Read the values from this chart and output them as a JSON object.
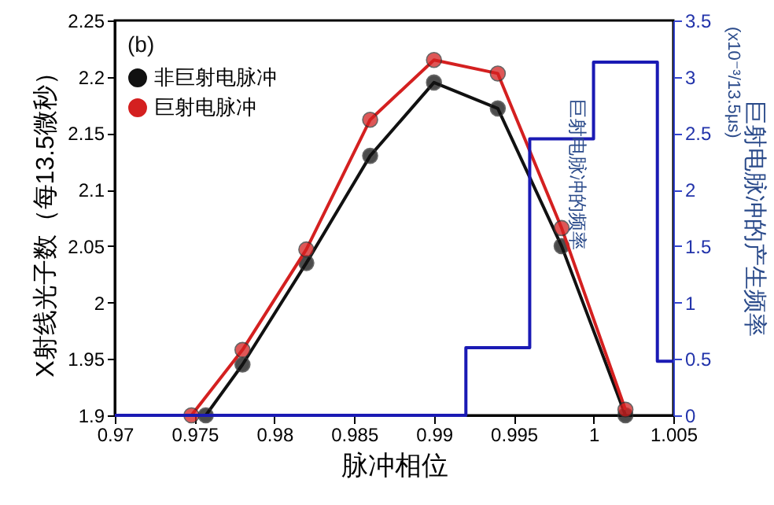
{
  "chart_data": {
    "type": "line",
    "xlabel": "脉冲相位",
    "ylabel": "X射线光子数（每13.5微秒）",
    "y2label": "巨射电脉冲的产生频率",
    "annotations": [
      "(b)",
      "巨射电脉冲的频率",
      "(x10⁻³/13.5μs)"
    ],
    "xlim": [
      0.97,
      1.005
    ],
    "xticks": [
      0.97,
      0.975,
      0.98,
      0.985,
      0.99,
      0.995,
      1,
      1.005
    ],
    "ylim": [
      1.9,
      2.25
    ],
    "yticks": [
      1.9,
      1.95,
      2,
      2.05,
      2.1,
      2.15,
      2.2,
      2.25
    ],
    "y2lim": [
      0,
      3.5
    ],
    "y2ticks": [
      0,
      0.5,
      1,
      1.5,
      2,
      2.5,
      3,
      3.5
    ],
    "grid": false,
    "legend": "top left",
    "marker": "circle",
    "series": [
      {
        "name": "非巨射电脉冲",
        "color": "#111111",
        "x": [
          0.9757,
          0.978,
          0.982,
          0.986,
          0.99,
          0.994,
          0.998,
          1.002
        ],
        "values": [
          1.9,
          1.945,
          2.035,
          2.13,
          2.195,
          2.172,
          2.05,
          1.9
        ]
      },
      {
        "name": "巨射电脉冲",
        "color": "#d42020",
        "x": [
          0.9748,
          0.978,
          0.982,
          0.986,
          0.99,
          0.994,
          0.998,
          1.002
        ],
        "values": [
          1.9,
          1.958,
          2.047,
          2.162,
          2.215,
          2.203,
          2.066,
          1.905
        ]
      },
      {
        "type": "step",
        "axis": "y2",
        "color": "#1a1ab4",
        "marker": "none",
        "x": [
          0.97,
          0.992,
          0.996,
          1.0,
          1.004,
          1.005
        ],
        "values": [
          0,
          0.6,
          2.45,
          3.13,
          0.48,
          0.48
        ]
      }
    ]
  }
}
